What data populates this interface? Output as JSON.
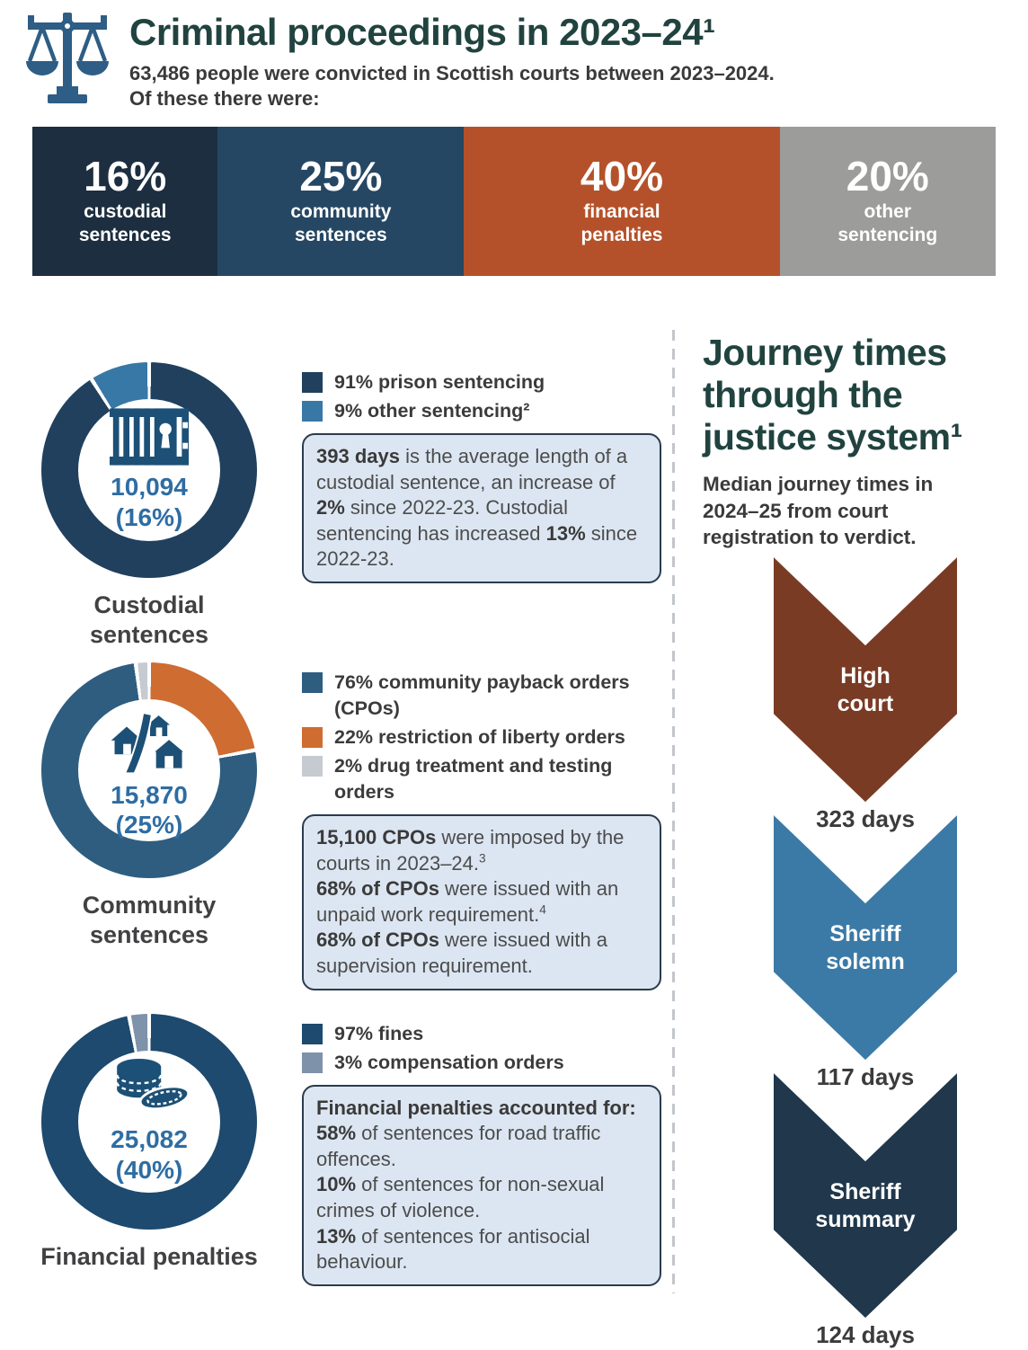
{
  "ui": {
    "header": {
      "title": "Criminal proceedings in 2023–24¹",
      "subtitle_line1": "63,486 people were convicted in Scottish courts between 2023–2024.",
      "subtitle_line2": "Of these there were:"
    },
    "stat_bar": [
      {
        "pct": "16%",
        "label": "custodial\nsentences",
        "color": "#1c2e3f",
        "value": 16
      },
      {
        "pct": "25%",
        "label": "community\nsentences",
        "color": "#254763",
        "value": 25
      },
      {
        "pct": "40%",
        "label": "financial\npenalties",
        "color": "#b5512a",
        "value": 40
      },
      {
        "pct": "20%",
        "label": "other\nsentencing",
        "color": "#9c9c9b",
        "value": 20
      }
    ],
    "sections": [
      {
        "label": "Custodial\nsentences",
        "center_label": "10,094\n(16%)",
        "icon": "prison-bars-icon",
        "donut_segments": [
          {
            "name": "prison sentencing",
            "pct": 91,
            "color": "#20405e"
          },
          {
            "name": "other sentencing",
            "pct": 9,
            "color": "#3878a6"
          }
        ],
        "legend": [
          {
            "color": "#20405e",
            "text": "91% prison sentencing"
          },
          {
            "color": "#3878a6",
            "text": "9% other sentencing²"
          }
        ],
        "box": [
          [
            {
              "t": "393 days",
              "b": 1
            },
            {
              "t": " is the average length of a custodial sentence, an increase of "
            },
            {
              "t": "2%",
              "b": 1
            },
            {
              "t": " since 2022-23. Custodial sentencing has increased "
            },
            {
              "t": "13%",
              "b": 1
            },
            {
              "t": " since 2022-23."
            }
          ]
        ]
      },
      {
        "label": "Community\nsentences",
        "center_label": "15,870\n(25%)",
        "icon": "community-houses-icon",
        "donut_segments": [
          {
            "name": "restriction of liberty orders",
            "pct": 22,
            "color": "#cf6c32"
          },
          {
            "name": "community payback orders (CPOs)",
            "pct": 76,
            "color": "#2e5d80"
          },
          {
            "name": "drug treatment and testing orders",
            "pct": 2,
            "color": "#c6cbd2"
          }
        ],
        "legend": [
          {
            "color": "#2e5d80",
            "text": "76% community payback orders (CPOs)"
          },
          {
            "color": "#cf6c32",
            "text": "22% restriction of liberty orders"
          },
          {
            "color": "#c6cbd2",
            "text": "2% drug treatment and testing orders"
          }
        ],
        "box": [
          [
            {
              "t": "15,100 CPOs",
              "b": 1
            },
            {
              "t": " were imposed by the courts in 2023–24."
            },
            {
              "t": "3",
              "sup": 1
            }
          ],
          [
            {
              "t": "68% of CPOs",
              "b": 1
            },
            {
              "t": " were issued with an unpaid work requirement."
            },
            {
              "t": "4",
              "sup": 1
            }
          ],
          [
            {
              "t": "68% of CPOs",
              "b": 1
            },
            {
              "t": " were issued with a supervision requirement."
            }
          ]
        ]
      },
      {
        "label": "Financial penalties",
        "center_label": "25,082\n(40%)",
        "icon": "coins-icon",
        "donut_segments": [
          {
            "name": "fines",
            "pct": 97,
            "color": "#1d4a6e"
          },
          {
            "name": "compensation orders",
            "pct": 3,
            "color": "#7e92a9"
          }
        ],
        "legend": [
          {
            "color": "#1d4a6e",
            "text": "97% fines"
          },
          {
            "color": "#7e92a9",
            "text": "3% compensation orders"
          }
        ],
        "box": [
          [
            {
              "t": "Financial penalties accounted for:",
              "b": 1
            }
          ],
          [
            {
              "t": "58%",
              "b": 1
            },
            {
              "t": " of sentences for road traffic offences."
            }
          ],
          [
            {
              "t": "10%",
              "b": 1
            },
            {
              "t": " of sentences for non-sexual crimes of violence."
            }
          ],
          [
            {
              "t": "13%",
              "b": 1
            },
            {
              "t": " of sentences for antisocial behaviour."
            }
          ]
        ]
      }
    ],
    "journey": {
      "title": "Journey times through the justice system¹",
      "subtitle": "Median journey times in 2024–25 from court registration to verdict.",
      "steps": [
        {
          "label": "High\ncourt",
          "days": "323 days",
          "color": "#7a3b24"
        },
        {
          "label": "Sheriff\nsolemn",
          "days": "117 days",
          "color": "#3b7aa6"
        },
        {
          "label": "Sheriff\nsummary",
          "days": "124 days",
          "color": "#20374c"
        }
      ]
    }
  },
  "chart_data": [
    {
      "type": "bar",
      "title": "Criminal proceedings in 2023–24: sentence types",
      "categories": [
        "custodial sentences",
        "community sentences",
        "financial penalties",
        "other sentencing"
      ],
      "values": [
        16,
        25,
        40,
        20
      ],
      "unit": "%",
      "total_convicted": 63486
    },
    {
      "type": "pie",
      "title": "Custodial sentences",
      "center_value": 10094,
      "center_pct": 16,
      "labels": [
        "prison sentencing",
        "other sentencing"
      ],
      "values": [
        91,
        9
      ],
      "unit": "%"
    },
    {
      "type": "pie",
      "title": "Community sentences",
      "center_value": 15870,
      "center_pct": 25,
      "labels": [
        "community payback orders (CPOs)",
        "restriction of liberty orders",
        "drug treatment and testing orders"
      ],
      "values": [
        76,
        22,
        2
      ],
      "unit": "%"
    },
    {
      "type": "pie",
      "title": "Financial penalties",
      "center_value": 25082,
      "center_pct": 40,
      "labels": [
        "fines",
        "compensation orders"
      ],
      "values": [
        97,
        3
      ],
      "unit": "%"
    },
    {
      "type": "bar",
      "title": "Journey times through the justice system",
      "subtitle": "Median journey times in 2024–25 from court registration to verdict",
      "categories": [
        "High court",
        "Sheriff solemn",
        "Sheriff summary"
      ],
      "values": [
        323,
        117,
        124
      ],
      "unit": "days"
    }
  ]
}
